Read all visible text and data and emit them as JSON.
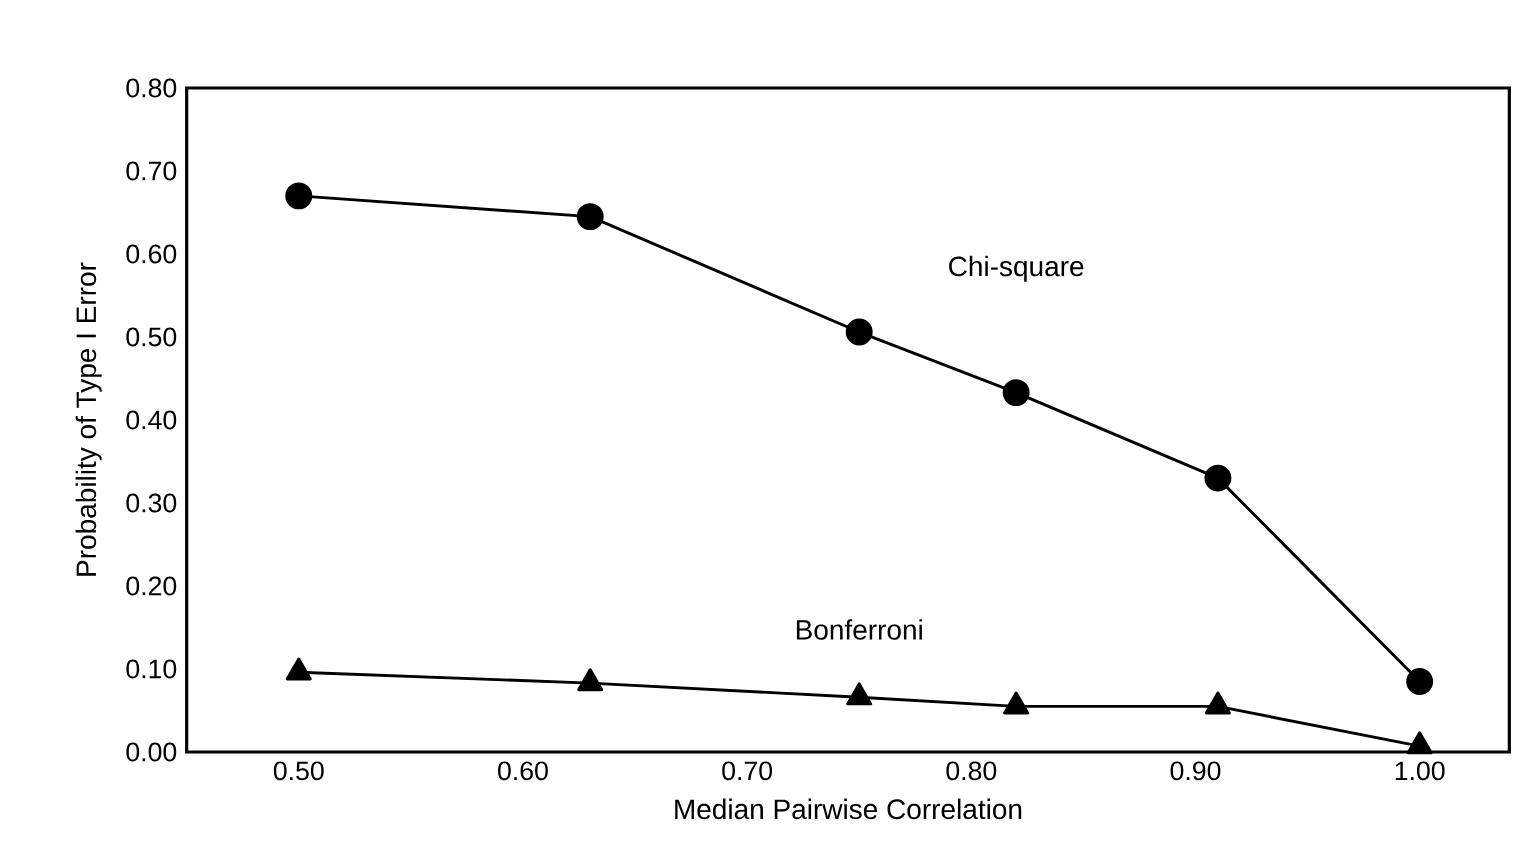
{
  "chart_data": {
    "type": "line",
    "x": [
      0.5,
      0.63,
      0.75,
      0.82,
      0.91,
      1.0
    ],
    "xlabel": "Median Pairwise Correlation",
    "ylabel": "Probability of Type I Error",
    "series": [
      {
        "name": "Chi-square",
        "color": "#000000",
        "marker": "circle",
        "values": [
          0.67,
          0.645,
          0.506,
          0.433,
          0.33,
          0.085
        ]
      },
      {
        "name": "Bonferroni",
        "color": "#000000",
        "marker": "triangle",
        "values": [
          0.096,
          0.083,
          0.066,
          0.055,
          0.055,
          0.007
        ]
      }
    ],
    "xlim": [
      0.45,
      1.04
    ],
    "ylim": [
      0,
      0.8
    ],
    "xticks": [
      {
        "value": 0.5,
        "label": "0.50"
      },
      {
        "value": 0.6,
        "label": "0.60"
      },
      {
        "value": 0.7,
        "label": "0.70"
      },
      {
        "value": 0.8,
        "label": "0.80"
      },
      {
        "value": 0.9,
        "label": "0.90"
      },
      {
        "value": 1.0,
        "label": "1.00"
      }
    ],
    "yticks": [
      {
        "value": 0,
        "label": "0.00"
      },
      {
        "value": 0.1,
        "label": "0.10"
      },
      {
        "value": 0.2,
        "label": "0.20"
      },
      {
        "value": 0.3,
        "label": "0.30"
      },
      {
        "value": 0.4,
        "label": "0.40"
      },
      {
        "value": 0.5,
        "label": "0.50"
      },
      {
        "value": 0.6,
        "label": "0.60"
      },
      {
        "value": 0.7,
        "label": "0.70"
      },
      {
        "value": 0.8,
        "label": "0.80"
      }
    ],
    "line_style": "solid"
  }
}
